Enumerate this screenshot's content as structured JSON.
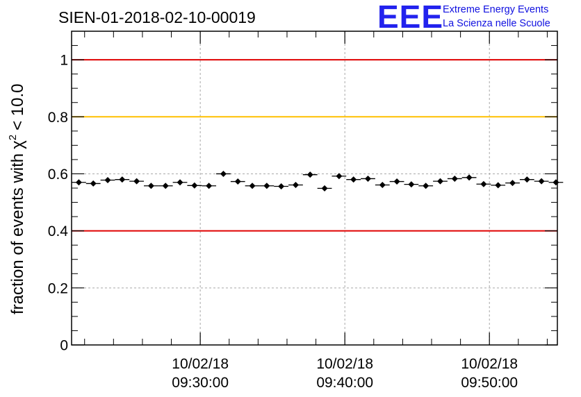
{
  "chart_data": {
    "type": "scatter",
    "title": "SIEN-01-2018-02-10-00019",
    "ylabel": "fraction of events with",
    "ylabel_symbol": "χ",
    "ylabel_exponent": "2",
    "ylabel_threshold": "< 10.0",
    "xlabel": "",
    "ylim": [
      0,
      1.1
    ],
    "xlim_minutes": [
      -8.9,
      24.7
    ],
    "y_ticks": [
      0,
      0.2,
      0.4,
      0.6,
      0.8,
      1
    ],
    "y_tick_labels": [
      "0",
      "0.2",
      "0.4",
      "0.6",
      "0.8",
      "1"
    ],
    "x_ticks_minutes": [
      0,
      10,
      20
    ],
    "x_tick_labels": [
      {
        "date": "10/02/18",
        "time": "09:30:00"
      },
      {
        "date": "10/02/18",
        "time": "09:40:00"
      },
      {
        "date": "10/02/18",
        "time": "09:50:00"
      }
    ],
    "grid": true,
    "reference_lines": [
      {
        "y": 1.0,
        "color": "#e00000"
      },
      {
        "y": 0.8,
        "color": "#ffc000"
      },
      {
        "y": 0.4,
        "color": "#e00000"
      }
    ],
    "bin_width_minutes": 1.0,
    "x_minutes": [
      -8.4,
      -7.4,
      -6.4,
      -5.4,
      -4.4,
      -3.4,
      -2.4,
      -1.4,
      -0.4,
      0.6,
      1.6,
      2.6,
      3.6,
      4.6,
      5.6,
      6.6,
      7.6,
      8.6,
      9.6,
      10.6,
      11.6,
      12.6,
      13.6,
      14.6,
      15.6,
      16.6,
      17.6,
      18.6,
      19.6,
      20.6,
      21.6,
      22.6,
      23.6,
      24.6
    ],
    "values": [
      0.57,
      0.566,
      0.578,
      0.58,
      0.574,
      0.558,
      0.558,
      0.57,
      0.559,
      0.558,
      0.6,
      0.573,
      0.558,
      0.558,
      0.556,
      0.561,
      0.597,
      0.549,
      0.592,
      0.58,
      0.583,
      0.561,
      0.573,
      0.563,
      0.558,
      0.574,
      0.583,
      0.587,
      0.564,
      0.56,
      0.568,
      0.58,
      0.574,
      0.57
    ],
    "errors": [
      0.008,
      0.007,
      0.007,
      0.007,
      0.007,
      0.007,
      0.007,
      0.007,
      0.007,
      0.007,
      0.007,
      0.007,
      0.007,
      0.007,
      0.007,
      0.007,
      0.007,
      0.008,
      0.007,
      0.007,
      0.007,
      0.007,
      0.007,
      0.007,
      0.007,
      0.007,
      0.007,
      0.007,
      0.007,
      0.007,
      0.007,
      0.007,
      0.007,
      0.008
    ],
    "marker_color": "#000000"
  },
  "logo": {
    "mark": "EEE",
    "line1": "Extreme Energy Events",
    "line2": "La Scienza nelle Scuole",
    "color": "#1a1ae6"
  }
}
